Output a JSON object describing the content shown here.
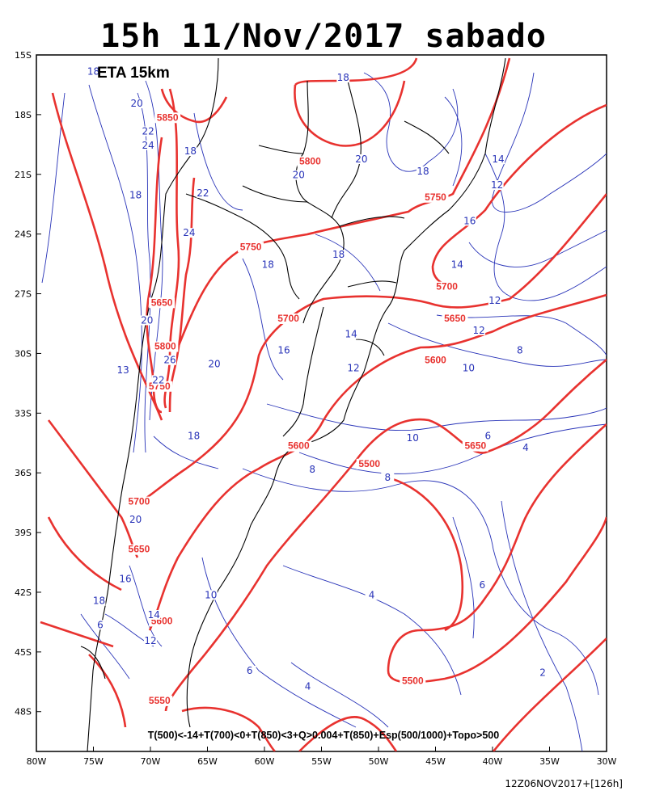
{
  "title": "15h 11/Nov/2017 sabado",
  "model_label": "ETA 15km",
  "criteria_text": "T(500)<-14+T(700)<0+T(850)<3+Q>0.004+T(850)+Esp(500/1000)+Topo>500",
  "run_info": "12Z06NOV2017+[126h]",
  "map": {
    "lon_range": [
      -80,
      -30
    ],
    "lat_range": [
      -50,
      -15
    ],
    "lat_ticks": [
      "15S",
      "18S",
      "21S",
      "24S",
      "27S",
      "30S",
      "33S",
      "36S",
      "39S",
      "42S",
      "45S",
      "48S"
    ],
    "lon_ticks": [
      "80W",
      "75W",
      "70W",
      "65W",
      "60W",
      "55W",
      "50W",
      "45W",
      "40W",
      "35W",
      "30W"
    ],
    "thickness_color": "#e8322f",
    "temperature_color": "#2833b8",
    "coast_color": "#000000",
    "thickness_labels": [
      {
        "text": "5850",
        "lon": -68.5,
        "lat": -18.3
      },
      {
        "text": "5800",
        "lon": -56.0,
        "lat": -20.5
      },
      {
        "text": "5750",
        "lon": -45.0,
        "lat": -22.3
      },
      {
        "text": "5750",
        "lon": -61.2,
        "lat": -24.8
      },
      {
        "text": "5700",
        "lon": -44.0,
        "lat": -26.8
      },
      {
        "text": "5650",
        "lon": -69.0,
        "lat": -27.6
      },
      {
        "text": "5700",
        "lon": -57.9,
        "lat": -28.4
      },
      {
        "text": "5650",
        "lon": -43.3,
        "lat": -28.4
      },
      {
        "text": "5800",
        "lon": -68.7,
        "lat": -29.8
      },
      {
        "text": "5600",
        "lon": -45.0,
        "lat": -30.5
      },
      {
        "text": "5750",
        "lon": -69.2,
        "lat": -31.8
      },
      {
        "text": "5600",
        "lon": -57.0,
        "lat": -34.8
      },
      {
        "text": "5650",
        "lon": -41.5,
        "lat": -34.8
      },
      {
        "text": "5500",
        "lon": -50.8,
        "lat": -35.7
      },
      {
        "text": "5700",
        "lon": -71.0,
        "lat": -37.6
      },
      {
        "text": "5650",
        "lon": -71.0,
        "lat": -40.0
      },
      {
        "text": "5600",
        "lon": -69.0,
        "lat": -43.6
      },
      {
        "text": "5500",
        "lon": -47.0,
        "lat": -46.6
      },
      {
        "text": "5550",
        "lon": -69.2,
        "lat": -47.6
      }
    ],
    "temperature_labels": [
      {
        "text": "18",
        "lon": -75.0,
        "lat": -16.0
      },
      {
        "text": "20",
        "lon": -71.2,
        "lat": -17.6
      },
      {
        "text": "22",
        "lon": -70.2,
        "lat": -19.0
      },
      {
        "text": "24",
        "lon": -70.2,
        "lat": -19.7
      },
      {
        "text": "18",
        "lon": -53.1,
        "lat": -16.3
      },
      {
        "text": "18",
        "lon": -66.5,
        "lat": -20.0
      },
      {
        "text": "20",
        "lon": -51.5,
        "lat": -20.4
      },
      {
        "text": "20",
        "lon": -57.0,
        "lat": -21.2
      },
      {
        "text": "18",
        "lon": -46.1,
        "lat": -21.0
      },
      {
        "text": "14",
        "lon": -39.5,
        "lat": -20.4
      },
      {
        "text": "12",
        "lon": -39.6,
        "lat": -21.7
      },
      {
        "text": "22",
        "lon": -65.4,
        "lat": -22.1
      },
      {
        "text": "18",
        "lon": -71.3,
        "lat": -22.2
      },
      {
        "text": "16",
        "lon": -42.0,
        "lat": -23.5
      },
      {
        "text": "24",
        "lon": -66.6,
        "lat": -24.1
      },
      {
        "text": "18",
        "lon": -59.7,
        "lat": -25.7
      },
      {
        "text": "18",
        "lon": -53.5,
        "lat": -25.2
      },
      {
        "text": "14",
        "lon": -43.1,
        "lat": -25.7
      },
      {
        "text": "12",
        "lon": -39.8,
        "lat": -27.5
      },
      {
        "text": "20",
        "lon": -70.3,
        "lat": -28.5
      },
      {
        "text": "14",
        "lon": -52.4,
        "lat": -29.2
      },
      {
        "text": "16",
        "lon": -58.3,
        "lat": -30.0
      },
      {
        "text": "12",
        "lon": -41.2,
        "lat": -29.0
      },
      {
        "text": "8",
        "lon": -37.6,
        "lat": -30.0
      },
      {
        "text": "26",
        "lon": -68.3,
        "lat": -30.5
      },
      {
        "text": "20",
        "lon": -64.4,
        "lat": -30.7
      },
      {
        "text": "12",
        "lon": -52.2,
        "lat": -30.9
      },
      {
        "text": "10",
        "lon": -42.1,
        "lat": -30.9
      },
      {
        "text": "22",
        "lon": -69.3,
        "lat": -31.5
      },
      {
        "text": "13",
        "lon": -72.4,
        "lat": -31.0
      },
      {
        "text": "18",
        "lon": -66.2,
        "lat": -34.3
      },
      {
        "text": "10",
        "lon": -47.0,
        "lat": -34.4
      },
      {
        "text": "6",
        "lon": -40.4,
        "lat": -34.3
      },
      {
        "text": "4",
        "lon": -37.1,
        "lat": -34.9
      },
      {
        "text": "8",
        "lon": -55.8,
        "lat": -36.0
      },
      {
        "text": "8",
        "lon": -49.2,
        "lat": -36.4
      },
      {
        "text": "20",
        "lon": -71.3,
        "lat": -38.5
      },
      {
        "text": "16",
        "lon": -72.2,
        "lat": -41.5
      },
      {
        "text": "6",
        "lon": -40.9,
        "lat": -41.8
      },
      {
        "text": "10",
        "lon": -64.7,
        "lat": -42.3
      },
      {
        "text": "4",
        "lon": -50.6,
        "lat": -42.3
      },
      {
        "text": "18",
        "lon": -74.5,
        "lat": -42.6
      },
      {
        "text": "14",
        "lon": -69.7,
        "lat": -43.3
      },
      {
        "text": "6",
        "lon": -74.4,
        "lat": -43.8
      },
      {
        "text": "12",
        "lon": -70.0,
        "lat": -44.6
      },
      {
        "text": "6",
        "lon": -61.3,
        "lat": -46.1
      },
      {
        "text": "4",
        "lon": -56.2,
        "lat": -46.9
      },
      {
        "text": "2",
        "lon": -35.6,
        "lat": -46.2
      }
    ]
  }
}
